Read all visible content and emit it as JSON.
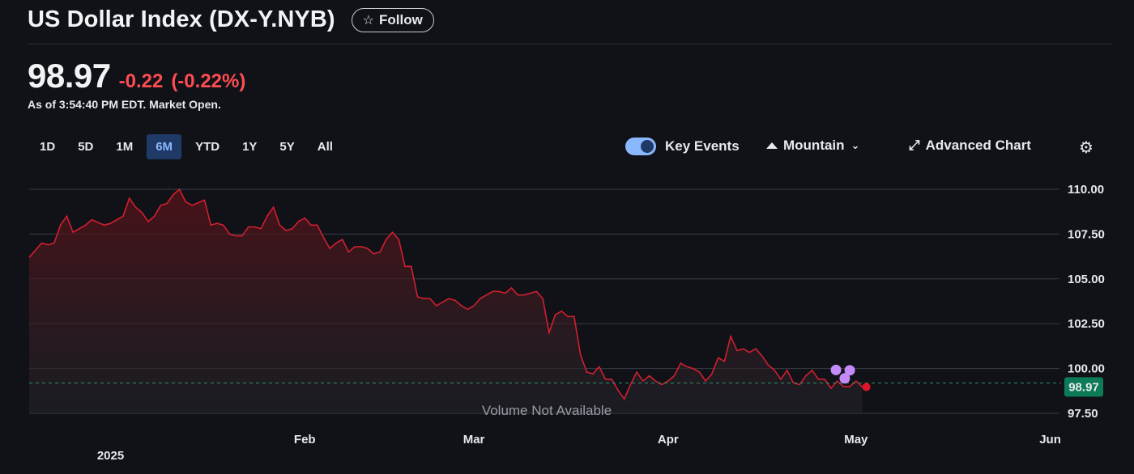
{
  "header": {
    "title": "US Dollar Index (DX-Y.NYB)",
    "follow_label": "Follow"
  },
  "quote": {
    "price": "98.97",
    "change": "-0.22",
    "change_pct": "(-0.22%)",
    "as_of": "As of 3:54:40 PM EDT. Market Open.",
    "negative_color": "#ff4d52"
  },
  "range_tabs": [
    "1D",
    "5D",
    "1M",
    "6M",
    "YTD",
    "1Y",
    "5Y",
    "All"
  ],
  "active_range": "6M",
  "controls": {
    "key_events_label": "Key Events",
    "key_events_on": true,
    "chart_type_label": "Mountain",
    "advanced_label": "Advanced Chart"
  },
  "chart_data": {
    "type": "area",
    "ylim": [
      97.5,
      110.0
    ],
    "yticks": [
      "110.00",
      "107.50",
      "105.00",
      "102.50",
      "100.00",
      "97.50"
    ],
    "ytick_values": [
      110.0,
      107.5,
      105.0,
      102.5,
      100.0,
      97.5
    ],
    "xticks": [
      "Feb",
      "Mar",
      "Apr",
      "May",
      "Jun"
    ],
    "year_label": "2025",
    "previous_close": 99.19,
    "last_label": "98.97",
    "volume_label": "Volume Not Available",
    "line_color": "#d21f2f",
    "x_span_days": 165,
    "xtick_days": [
      44,
      71,
      102,
      132,
      163
    ],
    "year_day": 13,
    "series": [
      {
        "values": [
          [
            0,
            106.2
          ],
          [
            2,
            107.0
          ],
          [
            3,
            106.9
          ],
          [
            4,
            107.0
          ],
          [
            5,
            108.0
          ],
          [
            6,
            108.5
          ],
          [
            7,
            107.6
          ],
          [
            9,
            108.0
          ],
          [
            10,
            108.3
          ],
          [
            12,
            108.0
          ],
          [
            13,
            108.1
          ],
          [
            15,
            108.5
          ],
          [
            16,
            109.5
          ],
          [
            17,
            109.0
          ],
          [
            18,
            108.7
          ],
          [
            19,
            108.2
          ],
          [
            20,
            108.5
          ],
          [
            21,
            109.1
          ],
          [
            22,
            109.2
          ],
          [
            23,
            109.7
          ],
          [
            24,
            110.0
          ],
          [
            25,
            109.3
          ],
          [
            26,
            109.1
          ],
          [
            28,
            109.4
          ],
          [
            29,
            108.0
          ],
          [
            30,
            108.1
          ],
          [
            31,
            108.0
          ],
          [
            32,
            107.5
          ],
          [
            33,
            107.4
          ],
          [
            34,
            107.4
          ],
          [
            35,
            107.9
          ],
          [
            36,
            107.9
          ],
          [
            37,
            107.8
          ],
          [
            38,
            108.5
          ],
          [
            39,
            109.0
          ],
          [
            40,
            108.0
          ],
          [
            41,
            107.7
          ],
          [
            42,
            107.8
          ],
          [
            43,
            108.2
          ],
          [
            44,
            108.4
          ],
          [
            45,
            108.0
          ],
          [
            46,
            108.0
          ],
          [
            47,
            107.3
          ],
          [
            48,
            106.7
          ],
          [
            49,
            107.0
          ],
          [
            50,
            107.2
          ],
          [
            51,
            106.5
          ],
          [
            52,
            106.8
          ],
          [
            53,
            106.8
          ],
          [
            54,
            106.7
          ],
          [
            55,
            106.4
          ],
          [
            56,
            106.5
          ],
          [
            57,
            107.2
          ],
          [
            58,
            107.6
          ],
          [
            59,
            107.2
          ],
          [
            60,
            105.7
          ],
          [
            61,
            105.7
          ],
          [
            62,
            104.0
          ],
          [
            63,
            103.9
          ],
          [
            64,
            103.9
          ],
          [
            65,
            103.5
          ],
          [
            66,
            103.7
          ],
          [
            67,
            103.9
          ],
          [
            68,
            103.8
          ],
          [
            69,
            103.5
          ],
          [
            70,
            103.3
          ],
          [
            71,
            103.5
          ],
          [
            72,
            103.9
          ],
          [
            73,
            104.1
          ],
          [
            74,
            104.3
          ],
          [
            75,
            104.3
          ],
          [
            76,
            104.2
          ],
          [
            77,
            104.5
          ],
          [
            78,
            104.1
          ],
          [
            79,
            104.1
          ],
          [
            80,
            104.2
          ],
          [
            81,
            104.3
          ],
          [
            82,
            103.9
          ],
          [
            83,
            102.0
          ],
          [
            84,
            103.0
          ],
          [
            85,
            103.2
          ],
          [
            86,
            102.9
          ],
          [
            87,
            102.9
          ],
          [
            88,
            100.8
          ],
          [
            89,
            99.8
          ],
          [
            90,
            99.7
          ],
          [
            91,
            100.1
          ],
          [
            92,
            99.4
          ],
          [
            93,
            99.4
          ],
          [
            94,
            98.8
          ],
          [
            95,
            98.3
          ],
          [
            96,
            99.1
          ],
          [
            97,
            99.8
          ],
          [
            98,
            99.3
          ],
          [
            99,
            99.6
          ],
          [
            100,
            99.3
          ],
          [
            101,
            99.1
          ],
          [
            102,
            99.3
          ],
          [
            103,
            99.6
          ],
          [
            104,
            100.3
          ],
          [
            105,
            100.1
          ],
          [
            106,
            100.0
          ],
          [
            107,
            99.8
          ],
          [
            108,
            99.3
          ],
          [
            109,
            99.7
          ],
          [
            110,
            100.6
          ],
          [
            111,
            100.4
          ],
          [
            112,
            101.8
          ],
          [
            113,
            101.0
          ],
          [
            114,
            101.1
          ],
          [
            115,
            100.9
          ],
          [
            116,
            101.1
          ],
          [
            117,
            100.7
          ],
          [
            118,
            100.2
          ],
          [
            119,
            99.9
          ],
          [
            120,
            99.4
          ],
          [
            121,
            99.9
          ],
          [
            122,
            99.2
          ],
          [
            123,
            99.1
          ],
          [
            124,
            99.6
          ],
          [
            125,
            99.9
          ],
          [
            126,
            99.4
          ],
          [
            127,
            99.4
          ],
          [
            128,
            98.9
          ],
          [
            129,
            99.3
          ],
          [
            130,
            99.0
          ],
          [
            131,
            99.0
          ],
          [
            132,
            99.3
          ],
          [
            133,
            98.97
          ]
        ]
      }
    ],
    "events": [
      {
        "x": 128.8,
        "y": 99.92,
        "color": "#c58af9"
      },
      {
        "x": 130.2,
        "y": 99.45,
        "color": "#c58af9"
      },
      {
        "x": 131.0,
        "y": 99.9,
        "color": "#c58af9"
      }
    ],
    "last_point_color": "#e0142a",
    "badge_color": "#0d7b58"
  }
}
